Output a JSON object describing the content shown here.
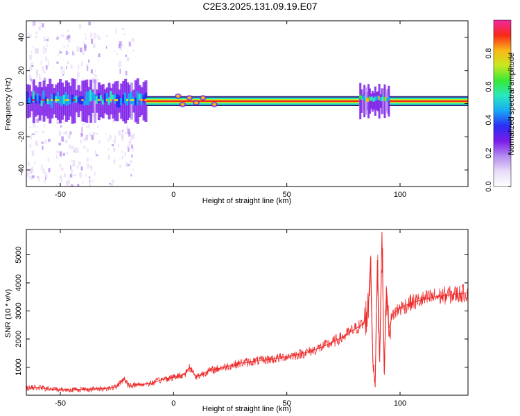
{
  "title": "C2E3.2025.131.09.19.E07",
  "colors": {
    "background": "#ffffff",
    "axis": "#000000",
    "snr_line": "#ee2a2a"
  },
  "chart_data": [
    {
      "type": "heatmap",
      "xlabel": "Height of straight line (km)",
      "ylabel": "Frequency (Hz)",
      "xlim": [
        -65,
        130
      ],
      "ylim": [
        -50,
        50
      ],
      "x_ticks": [
        -50,
        0,
        50,
        100
      ],
      "y_ticks": [
        -40,
        -20,
        0,
        20,
        40
      ],
      "colorbar": {
        "label": "Normalized spectral amplitude",
        "range": [
          0,
          1
        ],
        "ticks": [
          0.0,
          0.2,
          0.4,
          0.6,
          0.8
        ],
        "colormap": [
          "#ffffff",
          "#e8dcf8",
          "#b48cf0",
          "#7a1ce8",
          "#2a2ef5",
          "#18a8f5",
          "#28e8c0",
          "#38e838",
          "#c8e820",
          "#f8b818",
          "#f82818",
          "#f028a0"
        ]
      },
      "features": {
        "center_frequency_hz": 1.5,
        "band_regions": [
          {
            "from_km": -65,
            "to_km": -12,
            "state": "broad noisy band, scattered weak energy across all frequencies"
          },
          {
            "from_km": -12,
            "to_km": 82,
            "state": "narrow strong band"
          },
          {
            "from_km": 82,
            "to_km": 95,
            "state": "broadened band near disturbance"
          },
          {
            "from_km": 95,
            "to_km": 130,
            "state": "narrow strong band"
          }
        ]
      }
    },
    {
      "type": "line",
      "xlabel": "Height of straight line (km)",
      "ylabel": "SNR (10 * v/v)",
      "xlim": [
        -65,
        130
      ],
      "ylim": [
        0,
        5900
      ],
      "x_ticks": [
        -50,
        0,
        50,
        100
      ],
      "y_ticks": [
        1000,
        2000,
        3000,
        4000,
        5000
      ],
      "series": [
        {
          "x": [
            -65,
            -60,
            -55,
            -50,
            -45,
            -40,
            -35,
            -30,
            -25,
            -22,
            -20,
            -15,
            -10,
            -5,
            0,
            5,
            7,
            10,
            15,
            20,
            25,
            30,
            35,
            40,
            45,
            50,
            55,
            60,
            65,
            70,
            75,
            80,
            84,
            86,
            87,
            88,
            89,
            90,
            91,
            92,
            93,
            94,
            95,
            97,
            100,
            105,
            110,
            115,
            120,
            125,
            130
          ],
          "y": [
            250,
            280,
            220,
            200,
            190,
            210,
            220,
            240,
            300,
            600,
            350,
            380,
            420,
            560,
            640,
            750,
            1000,
            650,
            850,
            950,
            1050,
            1150,
            1200,
            1250,
            1300,
            1380,
            1450,
            1550,
            1700,
            1880,
            2080,
            2350,
            2550,
            3100,
            4900,
            1200,
            300,
            4800,
            1200,
            5800,
            800,
            3800,
            2400,
            2900,
            3100,
            3300,
            3400,
            3500,
            3550,
            3600,
            3650
          ]
        }
      ]
    }
  ]
}
